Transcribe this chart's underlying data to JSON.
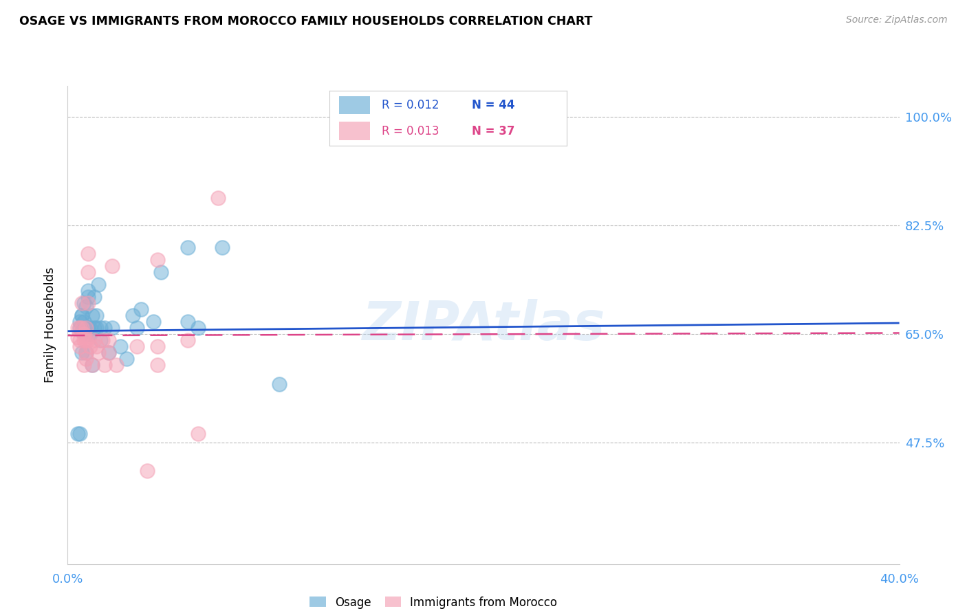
{
  "title": "OSAGE VS IMMIGRANTS FROM MOROCCO FAMILY HOUSEHOLDS CORRELATION CHART",
  "source": "Source: ZipAtlas.com",
  "ylabel": "Family Households",
  "ytick_labels": [
    "100.0%",
    "82.5%",
    "65.0%",
    "47.5%"
  ],
  "ytick_values": [
    1.0,
    0.825,
    0.65,
    0.475
  ],
  "ymin": 0.28,
  "ymax": 1.05,
  "xmin": -0.004,
  "xmax": 0.405,
  "legend1_r": "0.012",
  "legend1_n": "44",
  "legend2_r": "0.013",
  "legend2_n": "37",
  "color_blue": "#6aaed6",
  "color_pink": "#f4a0b5",
  "color_blue_line": "#2255cc",
  "color_pink_line": "#dd4488",
  "color_axis_labels": "#4499ee",
  "watermark": "ZIPAtlas",
  "osage_x": [
    0.001,
    0.002,
    0.002,
    0.003,
    0.003,
    0.003,
    0.004,
    0.004,
    0.005,
    0.005,
    0.005,
    0.005,
    0.006,
    0.006,
    0.006,
    0.007,
    0.007,
    0.008,
    0.008,
    0.009,
    0.009,
    0.01,
    0.01,
    0.011,
    0.012,
    0.012,
    0.014,
    0.016,
    0.018,
    0.022,
    0.025,
    0.028,
    0.03,
    0.032,
    0.038,
    0.042,
    0.055,
    0.055,
    0.06,
    0.072,
    0.1,
    0.002,
    0.003,
    0.005
  ],
  "osage_y": [
    0.49,
    0.66,
    0.67,
    0.655,
    0.62,
    0.68,
    0.7,
    0.67,
    0.65,
    0.66,
    0.695,
    0.62,
    0.66,
    0.71,
    0.72,
    0.66,
    0.65,
    0.68,
    0.6,
    0.71,
    0.66,
    0.68,
    0.66,
    0.73,
    0.64,
    0.66,
    0.66,
    0.62,
    0.66,
    0.63,
    0.61,
    0.68,
    0.66,
    0.69,
    0.67,
    0.75,
    0.79,
    0.67,
    0.66,
    0.79,
    0.57,
    0.49,
    0.68,
    0.66
  ],
  "morocco_x": [
    0.001,
    0.001,
    0.002,
    0.002,
    0.002,
    0.003,
    0.003,
    0.004,
    0.004,
    0.004,
    0.005,
    0.005,
    0.005,
    0.005,
    0.006,
    0.006,
    0.006,
    0.006,
    0.007,
    0.008,
    0.009,
    0.01,
    0.011,
    0.013,
    0.014,
    0.016,
    0.016,
    0.018,
    0.02,
    0.03,
    0.035,
    0.04,
    0.04,
    0.04,
    0.055,
    0.06,
    0.07
  ],
  "morocco_y": [
    0.645,
    0.66,
    0.66,
    0.64,
    0.63,
    0.66,
    0.7,
    0.6,
    0.65,
    0.64,
    0.66,
    0.64,
    0.62,
    0.61,
    0.78,
    0.75,
    0.64,
    0.7,
    0.63,
    0.6,
    0.64,
    0.63,
    0.62,
    0.64,
    0.6,
    0.64,
    0.62,
    0.76,
    0.6,
    0.63,
    0.43,
    0.77,
    0.6,
    0.63,
    0.64,
    0.49,
    0.87
  ],
  "blue_trendline": [
    0.655,
    0.668
  ],
  "pink_trendline": [
    0.648,
    0.652
  ]
}
